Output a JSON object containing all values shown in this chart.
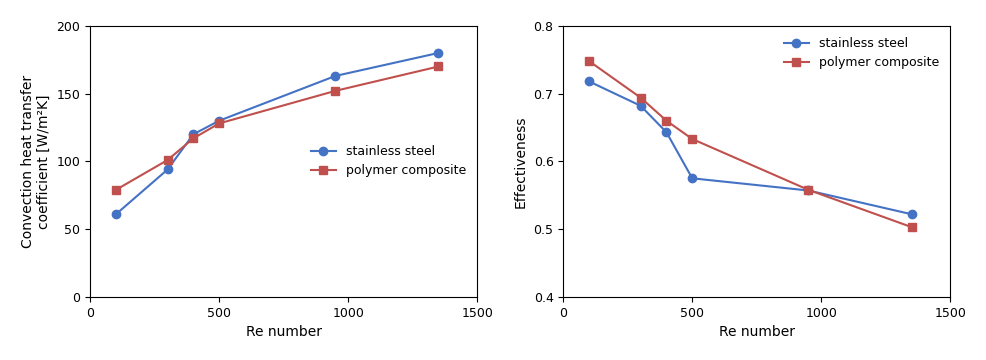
{
  "re_numbers": [
    100,
    300,
    400,
    500,
    950,
    1350
  ],
  "left_chart": {
    "ylabel": "Convection heat transfer\ncoefficient [W/m²K]",
    "xlabel": "Re number",
    "ylim": [
      0,
      200
    ],
    "xlim": [
      0,
      1500
    ],
    "yticks": [
      0,
      50,
      100,
      150,
      200
    ],
    "xticks": [
      0,
      500,
      1000,
      1500
    ],
    "stainless_steel": [
      61,
      94,
      120,
      130,
      163,
      180
    ],
    "polymer_composite": [
      79,
      101,
      117,
      128,
      152,
      170
    ],
    "legend_loc": "center right"
  },
  "right_chart": {
    "ylabel": "Effectiveness",
    "xlabel": "Re number",
    "ylim": [
      0.4,
      0.8
    ],
    "xlim": [
      0,
      1500
    ],
    "yticks": [
      0.4,
      0.5,
      0.6,
      0.7,
      0.8
    ],
    "xticks": [
      0,
      500,
      1000,
      1500
    ],
    "re_stainless": [
      100,
      300,
      400,
      500,
      950,
      1350
    ],
    "re_polymer": [
      100,
      300,
      400,
      500,
      950,
      1350
    ],
    "stainless_steel": [
      0.718,
      0.682,
      0.643,
      0.575,
      0.557,
      0.522
    ],
    "polymer_composite": [
      0.748,
      0.694,
      0.66,
      0.633,
      0.558,
      0.503
    ],
    "legend_loc": "upper right"
  },
  "stainless_color": "#4472C4",
  "polymer_color": "#C0504D",
  "stainless_label": "stainless steel",
  "polymer_label": "polymer composite",
  "marker_stainless": "o",
  "marker_polymer": "s",
  "linewidth": 1.5,
  "markersize": 6,
  "fontsize_label": 10,
  "fontsize_tick": 9,
  "fontsize_legend": 9
}
